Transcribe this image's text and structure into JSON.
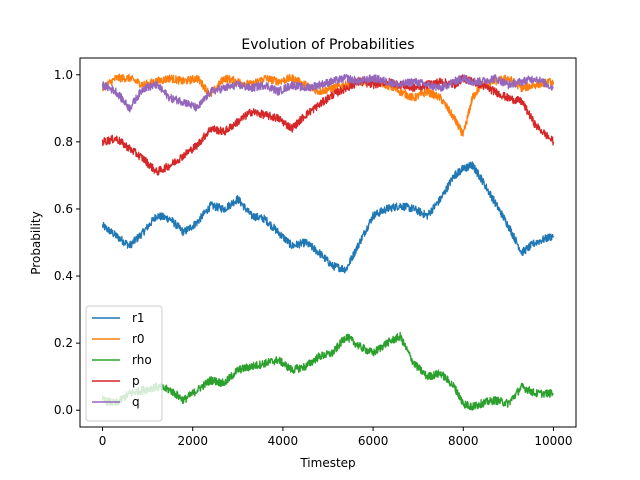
{
  "chart_data": {
    "type": "line",
    "title": "Evolution of Probabilities",
    "xlabel": "Timestep",
    "ylabel": "Probability",
    "xlim": [
      -500,
      10500
    ],
    "ylim": [
      -0.05,
      1.05
    ],
    "xticks": [
      0,
      2000,
      4000,
      6000,
      8000,
      10000
    ],
    "xtick_labels": [
      "0",
      "2000",
      "4000",
      "6000",
      "8000",
      "10000"
    ],
    "yticks": [
      0.0,
      0.2,
      0.4,
      0.6,
      0.8,
      1.0
    ],
    "ytick_labels": [
      "0.0",
      "0.2",
      "0.4",
      "0.6",
      "0.8",
      "1.0"
    ],
    "grid": false,
    "legend_position": "lower-left",
    "noise_amplitude": [
      0.012,
      0.012,
      0.012,
      0.012,
      0.012
    ],
    "series": [
      {
        "name": "r1",
        "color": "#1f77b4",
        "x": [
          0,
          300,
          600,
          900,
          1200,
          1500,
          1800,
          2100,
          2400,
          2700,
          3000,
          3300,
          3600,
          3900,
          4200,
          4500,
          4800,
          5100,
          5400,
          5700,
          6000,
          6300,
          6600,
          6900,
          7200,
          7500,
          7800,
          8000,
          8200,
          8400,
          8700,
          9000,
          9300,
          9600,
          10000
        ],
        "values": [
          0.55,
          0.52,
          0.49,
          0.53,
          0.58,
          0.57,
          0.53,
          0.56,
          0.61,
          0.6,
          0.63,
          0.58,
          0.57,
          0.53,
          0.49,
          0.5,
          0.47,
          0.43,
          0.42,
          0.5,
          0.58,
          0.6,
          0.61,
          0.6,
          0.58,
          0.63,
          0.7,
          0.72,
          0.73,
          0.69,
          0.62,
          0.55,
          0.47,
          0.5,
          0.52
        ]
      },
      {
        "name": "r0",
        "color": "#ff7f0e",
        "x": [
          0,
          300,
          600,
          900,
          1200,
          1500,
          1800,
          2100,
          2400,
          2700,
          3000,
          3300,
          3600,
          3900,
          4200,
          4500,
          4800,
          5100,
          5400,
          5700,
          6000,
          6300,
          6600,
          6900,
          7200,
          7500,
          7800,
          8000,
          8200,
          8400,
          8700,
          9000,
          9300,
          9600,
          10000
        ],
        "values": [
          0.96,
          0.99,
          0.99,
          0.97,
          0.98,
          0.99,
          0.98,
          0.99,
          0.94,
          0.99,
          0.98,
          0.97,
          0.99,
          0.98,
          0.99,
          0.97,
          0.95,
          0.96,
          0.97,
          0.98,
          0.98,
          0.97,
          0.95,
          0.93,
          0.95,
          0.93,
          0.87,
          0.82,
          0.93,
          0.97,
          0.98,
          0.99,
          0.96,
          0.97,
          0.98
        ]
      },
      {
        "name": "rho",
        "color": "#2ca02c",
        "x": [
          0,
          300,
          600,
          900,
          1200,
          1500,
          1800,
          2100,
          2400,
          2700,
          3000,
          3300,
          3600,
          3900,
          4200,
          4500,
          4800,
          5100,
          5400,
          5700,
          6000,
          6300,
          6600,
          6900,
          7200,
          7500,
          7800,
          8000,
          8200,
          8400,
          8700,
          9000,
          9300,
          9600,
          10000
        ],
        "values": [
          0.03,
          0.02,
          0.05,
          0.06,
          0.07,
          0.06,
          0.03,
          0.06,
          0.09,
          0.08,
          0.12,
          0.13,
          0.14,
          0.15,
          0.12,
          0.13,
          0.16,
          0.17,
          0.22,
          0.19,
          0.17,
          0.2,
          0.22,
          0.14,
          0.1,
          0.11,
          0.07,
          0.02,
          0.01,
          0.02,
          0.03,
          0.02,
          0.07,
          0.05,
          0.05
        ]
      },
      {
        "name": "p",
        "color": "#d62728",
        "x": [
          0,
          300,
          600,
          900,
          1200,
          1500,
          1800,
          2100,
          2400,
          2700,
          3000,
          3300,
          3600,
          3900,
          4200,
          4500,
          4800,
          5100,
          5400,
          5700,
          6000,
          6300,
          6600,
          6900,
          7200,
          7500,
          7800,
          8000,
          8200,
          8400,
          8700,
          9000,
          9300,
          9600,
          10000
        ],
        "values": [
          0.8,
          0.81,
          0.78,
          0.75,
          0.71,
          0.73,
          0.76,
          0.79,
          0.84,
          0.83,
          0.86,
          0.89,
          0.88,
          0.87,
          0.84,
          0.88,
          0.91,
          0.94,
          0.96,
          0.98,
          0.97,
          0.98,
          0.97,
          0.96,
          0.97,
          0.98,
          0.97,
          0.99,
          0.98,
          0.97,
          0.95,
          0.93,
          0.92,
          0.85,
          0.8
        ]
      },
      {
        "name": "q",
        "color": "#9467bd",
        "x": [
          0,
          300,
          600,
          900,
          1200,
          1500,
          1800,
          2100,
          2400,
          2700,
          3000,
          3300,
          3600,
          3900,
          4200,
          4500,
          4800,
          5100,
          5400,
          5700,
          6000,
          6300,
          6600,
          6900,
          7200,
          7500,
          7800,
          8000,
          8200,
          8400,
          8700,
          9000,
          9300,
          9600,
          10000
        ],
        "values": [
          0.97,
          0.95,
          0.9,
          0.96,
          0.97,
          0.93,
          0.92,
          0.9,
          0.95,
          0.96,
          0.97,
          0.96,
          0.97,
          0.95,
          0.97,
          0.96,
          0.97,
          0.98,
          0.99,
          0.98,
          0.99,
          0.98,
          0.97,
          0.98,
          0.97,
          0.96,
          0.98,
          0.99,
          0.98,
          0.98,
          0.99,
          0.97,
          0.98,
          0.99,
          0.96
        ]
      }
    ]
  }
}
